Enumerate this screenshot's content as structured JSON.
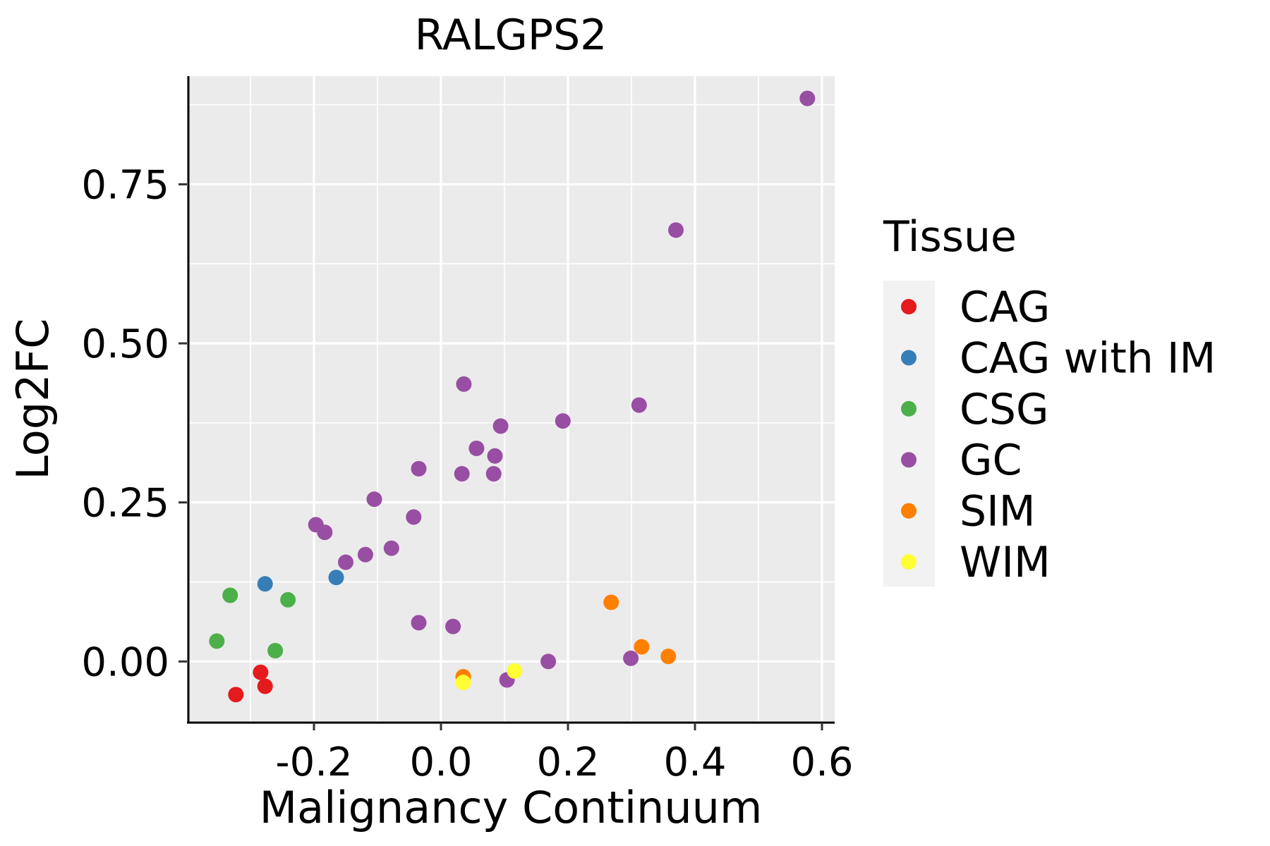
{
  "chart_data": {
    "type": "scatter",
    "title": "RALGPS2",
    "xlabel": "Malignancy Continuum",
    "ylabel": "Log2FC",
    "xlim": [
      -0.4,
      0.62
    ],
    "ylim": [
      -0.095,
      0.92
    ],
    "x_ticks": [
      -0.2,
      0.0,
      0.2,
      0.4,
      0.6
    ],
    "x_tick_labels": [
      "-0.2",
      "0.0",
      "0.2",
      "0.4",
      "0.6"
    ],
    "y_ticks": [
      0.0,
      0.25,
      0.5,
      0.75
    ],
    "y_tick_labels": [
      "0.00",
      "0.25",
      "0.50",
      "0.75"
    ],
    "grid": true,
    "legend": {
      "title": "Tissue",
      "position": "right",
      "entries": [
        {
          "name": "CAG",
          "color": "#E41A1C"
        },
        {
          "name": "CAG with IM",
          "color": "#377EB8"
        },
        {
          "name": "CSG",
          "color": "#4DAF4A"
        },
        {
          "name": "GC",
          "color": "#984EA3"
        },
        {
          "name": "SIM",
          "color": "#FF7F00"
        },
        {
          "name": "WIM",
          "color": "#FFFF33"
        }
      ]
    },
    "series": [
      {
        "name": "CAG",
        "color": "#E41A1C",
        "points": [
          {
            "x": -0.323,
            "y": -0.052
          },
          {
            "x": -0.284,
            "y": -0.017
          },
          {
            "x": -0.277,
            "y": -0.039
          }
        ]
      },
      {
        "name": "CAG with IM",
        "color": "#377EB8",
        "points": [
          {
            "x": -0.277,
            "y": 0.122
          },
          {
            "x": -0.165,
            "y": 0.132
          }
        ]
      },
      {
        "name": "CSG",
        "color": "#4DAF4A",
        "points": [
          {
            "x": -0.353,
            "y": 0.032
          },
          {
            "x": -0.332,
            "y": 0.104
          },
          {
            "x": -0.261,
            "y": 0.017
          },
          {
            "x": -0.241,
            "y": 0.097
          }
        ]
      },
      {
        "name": "GC",
        "color": "#984EA3",
        "points": [
          {
            "x": 0.577,
            "y": 0.885
          },
          {
            "x": 0.37,
            "y": 0.678
          },
          {
            "x": 0.036,
            "y": 0.436
          },
          {
            "x": 0.312,
            "y": 0.403
          },
          {
            "x": 0.192,
            "y": 0.378
          },
          {
            "x": 0.094,
            "y": 0.37
          },
          {
            "x": 0.056,
            "y": 0.335
          },
          {
            "x": 0.085,
            "y": 0.323
          },
          {
            "x": -0.035,
            "y": 0.303
          },
          {
            "x": 0.033,
            "y": 0.295
          },
          {
            "x": 0.083,
            "y": 0.295
          },
          {
            "x": -0.105,
            "y": 0.255
          },
          {
            "x": -0.043,
            "y": 0.227
          },
          {
            "x": -0.197,
            "y": 0.215
          },
          {
            "x": -0.183,
            "y": 0.203
          },
          {
            "x": -0.078,
            "y": 0.178
          },
          {
            "x": -0.119,
            "y": 0.168
          },
          {
            "x": -0.15,
            "y": 0.156
          },
          {
            "x": -0.035,
            "y": 0.061
          },
          {
            "x": 0.019,
            "y": 0.055
          },
          {
            "x": 0.169,
            "y": 0.0
          },
          {
            "x": 0.299,
            "y": 0.005
          },
          {
            "x": 0.104,
            "y": -0.029
          }
        ]
      },
      {
        "name": "SIM",
        "color": "#FF7F00",
        "points": [
          {
            "x": 0.268,
            "y": 0.093
          },
          {
            "x": 0.316,
            "y": 0.023
          },
          {
            "x": 0.358,
            "y": 0.008
          },
          {
            "x": 0.035,
            "y": -0.024
          }
        ]
      },
      {
        "name": "WIM",
        "color": "#FFFF33",
        "points": [
          {
            "x": 0.116,
            "y": -0.015
          },
          {
            "x": 0.035,
            "y": -0.033
          }
        ]
      }
    ]
  }
}
